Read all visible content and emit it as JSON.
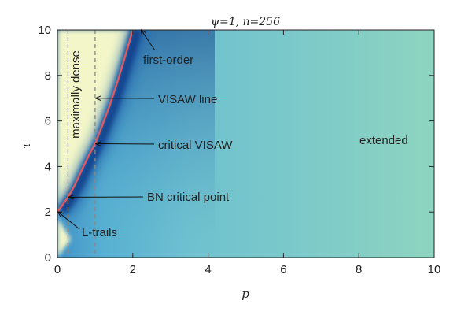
{
  "chart_data": {
    "type": "heatmap",
    "title": "ψ=1, n=256",
    "xlabel": "p",
    "ylabel": "τ",
    "xlim": [
      0,
      10
    ],
    "ylim": [
      0,
      10
    ],
    "xticks": [
      "0",
      "2",
      "4",
      "6",
      "8",
      "10"
    ],
    "yticks": [
      "0",
      "2",
      "4",
      "6",
      "8",
      "10"
    ],
    "grid": false,
    "colors": {
      "dense_region": "#f2f6c8",
      "ridge": "#0b3d8a",
      "field": "#6fc3cf",
      "extended_region": "#8ed4bf",
      "transition_line": "#e05a60",
      "dashed_lines": "#888888"
    },
    "transition_line": {
      "x": [
        0.0,
        0.13,
        0.28,
        0.45,
        0.62,
        0.82,
        1.0,
        1.2,
        1.4,
        1.6,
        1.8,
        2.0
      ],
      "y": [
        2.0,
        2.3,
        2.65,
        3.15,
        3.75,
        4.45,
        5.0,
        5.85,
        6.75,
        7.75,
        8.85,
        10.0
      ]
    },
    "vertical_dashed_lines": [
      0.28,
      1.0
    ],
    "annotations": {
      "maximally_dense": "maximally dense",
      "extended": "extended",
      "first_order": "first-order",
      "visaw_line": "VISAW line",
      "critical_visaw": "critical VISAW",
      "bn_critical_point": "BN critical point",
      "l_trails": "L-trails"
    },
    "annotation_targets": {
      "first_order": [
        2.2,
        10.0
      ],
      "visaw_line": [
        1.0,
        7.0
      ],
      "critical_visaw": [
        1.0,
        5.0
      ],
      "bn_critical_point": [
        0.28,
        2.65
      ],
      "l_trails": [
        0.0,
        2.0
      ]
    }
  }
}
